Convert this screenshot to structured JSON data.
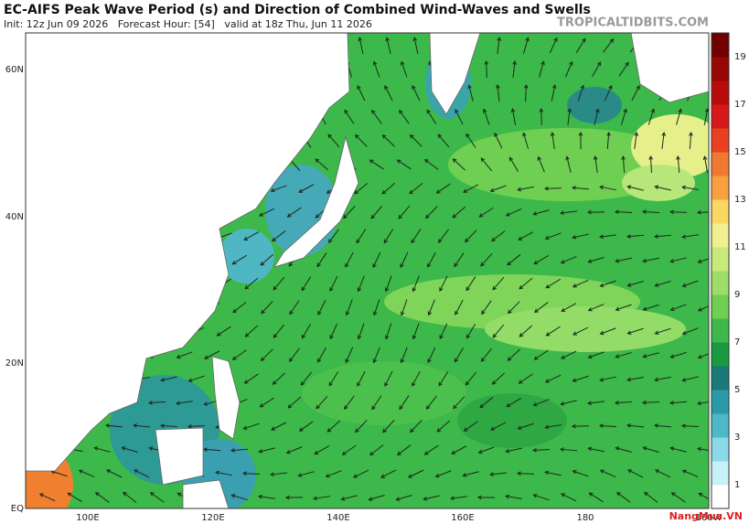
{
  "header": {
    "title": "EC-AIFS Peak Wave Period (s) and Direction of Combined Wind-Waves and Swells",
    "subtitle": "Init: 12z Jun 09 2026   Forecast Hour: [54]   valid at 18z Thu, Jun 11 2026",
    "site": "TROPICALTIDBITS.COM"
  },
  "map": {
    "lat_labels": [
      "60N",
      "40N",
      "20N",
      "EQ"
    ],
    "lon_labels": [
      "100E",
      "120E",
      "140E",
      "160E",
      "180",
      "160W"
    ]
  },
  "colorbar": {
    "labels": [
      "1",
      "3",
      "5",
      "7",
      "9",
      "11",
      "13",
      "15",
      "17",
      "19"
    ]
  },
  "watermark": "NangMua.VN"
}
